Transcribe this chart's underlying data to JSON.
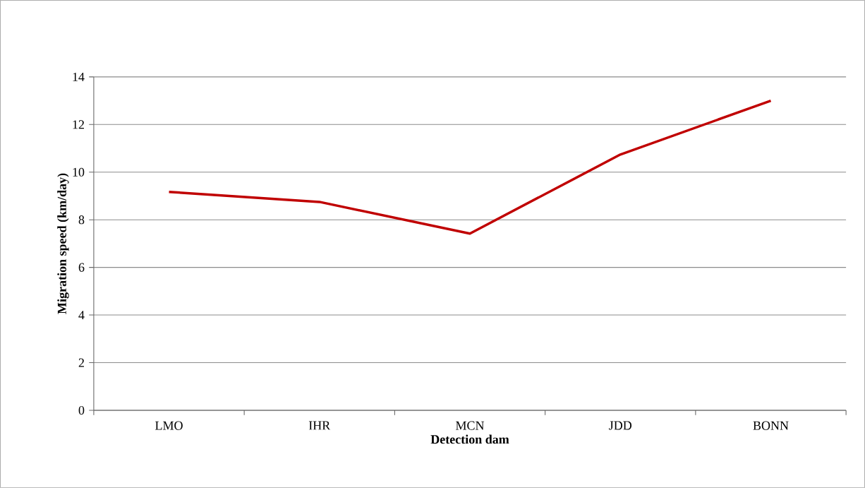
{
  "chart_data": {
    "type": "line",
    "xlabel": "Detection dam",
    "ylabel": "Migration speed (km/day)",
    "categories": [
      "LMO",
      "IHR",
      "MCN",
      "JDD",
      "BONN"
    ],
    "series": [
      {
        "color": "#c00000",
        "values": [
          9.17,
          8.75,
          7.42,
          10.74,
          13.0
        ]
      }
    ],
    "ylim": [
      0,
      14
    ],
    "yticks": [
      0,
      2,
      4,
      6,
      8,
      10,
      12,
      14
    ],
    "grid": "y",
    "marker": "none",
    "line_style": "solid"
  }
}
